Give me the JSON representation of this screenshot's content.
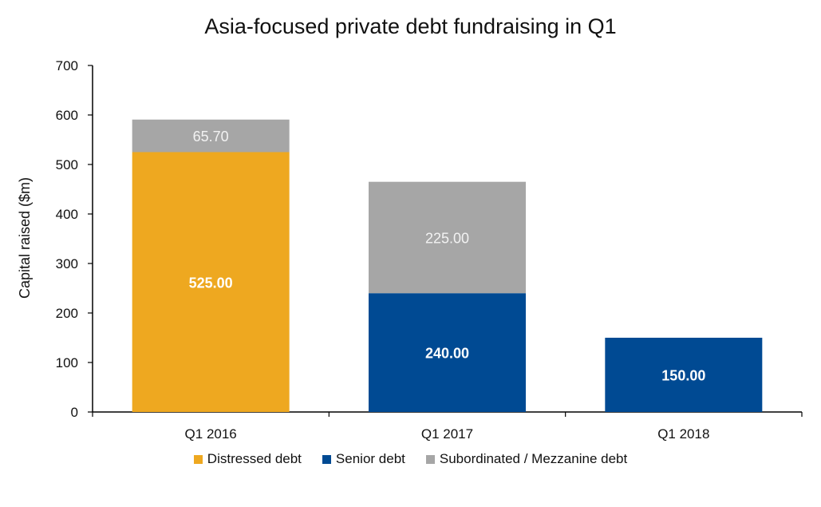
{
  "chart_data": {
    "type": "bar",
    "stacked": true,
    "title": "Asia-focused private debt fundraising in Q1",
    "xlabel": "",
    "ylabel": "Capital raised ($m)",
    "ylim": [
      0,
      700
    ],
    "yticks": [
      0,
      100,
      200,
      300,
      400,
      500,
      600,
      700
    ],
    "categories": [
      "Q1 2016",
      "Q1 2017",
      "Q1 2018"
    ],
    "grid": false,
    "legend": "bottom",
    "series": [
      {
        "name": "Distressed debt",
        "color": "#EEA820",
        "label_color": "#ffffff",
        "values": [
          525.0,
          0,
          0
        ],
        "labels": [
          "525.00",
          "",
          ""
        ]
      },
      {
        "name": "Senior debt",
        "color": "#004A93",
        "label_color": "#ffffff",
        "values": [
          0,
          240.0,
          150.0
        ],
        "labels": [
          "",
          "240.00",
          "150.00"
        ]
      },
      {
        "name": "Subordinated / Mezzanine debt",
        "color": "#A6A6A6",
        "label_color": "#f2f2f2",
        "values": [
          65.7,
          225.0,
          0
        ],
        "labels": [
          "65.70",
          "225.00",
          ""
        ]
      }
    ]
  }
}
